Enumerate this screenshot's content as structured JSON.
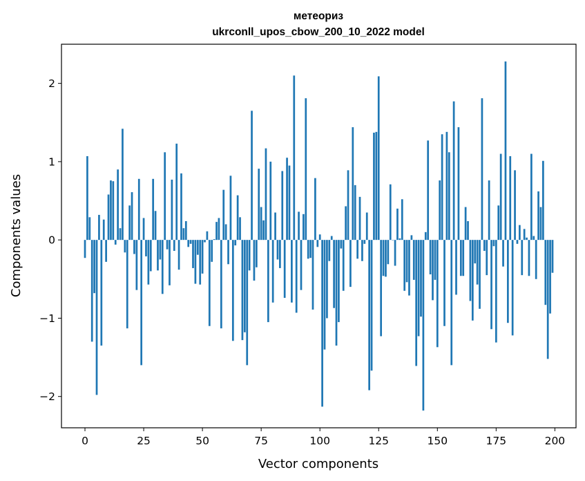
{
  "chart_data": {
    "type": "bar",
    "title_lines": [
      "метеориз",
      "ukrconll_upos_cbow_200_10_2022 model"
    ],
    "xlabel": "Vector components",
    "ylabel": "Components values",
    "xlim": [
      -10,
      209
    ],
    "ylim": [
      -2.4,
      2.5
    ],
    "xticks": [
      0,
      25,
      50,
      75,
      100,
      125,
      150,
      175,
      200
    ],
    "yticks": [
      -2,
      -1,
      0,
      1,
      2
    ],
    "ytick_labels": [
      "−2",
      "−1",
      "0",
      "1",
      "2"
    ],
    "grid": false,
    "bar_color": "#1f77b4",
    "values": [
      -0.23,
      1.07,
      0.29,
      -1.3,
      -0.68,
      -1.98,
      0.32,
      -1.35,
      0.26,
      -0.28,
      0.58,
      0.76,
      0.75,
      -0.06,
      0.9,
      0.15,
      1.42,
      -0.16,
      -1.13,
      0.44,
      0.61,
      -0.18,
      -0.64,
      0.78,
      -1.6,
      0.28,
      -0.21,
      -0.57,
      -0.4,
      0.78,
      0.37,
      -0.39,
      -0.25,
      -0.69,
      1.12,
      -0.12,
      -0.58,
      0.77,
      -0.14,
      1.23,
      -0.38,
      0.85,
      0.15,
      0.24,
      -0.09,
      -0.05,
      -0.36,
      -0.56,
      -0.19,
      -0.57,
      -0.43,
      -0.03,
      0.11,
      -1.1,
      -0.28,
      0.01,
      0.23,
      0.28,
      -1.13,
      0.64,
      0.2,
      -0.31,
      0.82,
      -1.29,
      -0.07,
      0.57,
      0.29,
      -1.28,
      -1.18,
      -1.6,
      -0.39,
      1.65,
      -0.52,
      -0.35,
      0.91,
      0.42,
      0.25,
      1.17,
      -1.05,
      1.0,
      -0.8,
      0.35,
      -0.25,
      -0.36,
      0.88,
      -0.74,
      1.05,
      0.95,
      -0.8,
      2.1,
      -0.93,
      0.36,
      -0.64,
      0.33,
      1.81,
      -0.24,
      -0.23,
      -0.89,
      0.79,
      -0.09,
      0.07,
      -2.13,
      -1.4,
      -1.0,
      -0.27,
      0.05,
      -0.87,
      -1.35,
      -1.05,
      -0.11,
      -0.65,
      0.43,
      0.89,
      -0.6,
      1.44,
      0.7,
      -0.24,
      0.55,
      -0.27,
      -0.05,
      0.35,
      -1.92,
      -1.67,
      1.37,
      1.38,
      2.09,
      -1.23,
      -0.46,
      -0.47,
      -0.31,
      0.71,
      0.0,
      -0.33,
      0.4,
      0.02,
      0.52,
      -0.65,
      -0.54,
      -0.71,
      0.06,
      -0.51,
      -1.61,
      -1.23,
      -0.98,
      -2.18,
      0.1,
      1.27,
      -0.44,
      -0.77,
      -0.51,
      -1.37,
      0.76,
      1.35,
      -1.1,
      1.38,
      1.12,
      -1.6,
      1.77,
      -0.7,
      1.44,
      -0.46,
      -0.46,
      0.42,
      0.24,
      -0.78,
      -1.03,
      -0.3,
      -0.57,
      -0.88,
      1.81,
      -0.14,
      -0.45,
      0.76,
      -1.14,
      -0.08,
      -1.31,
      0.44,
      1.1,
      -0.34,
      2.28,
      -1.06,
      1.07,
      -1.22,
      0.89,
      -0.05,
      0.19,
      -0.45,
      0.14,
      0.03,
      -0.46,
      1.1,
      0.05,
      -0.5,
      0.62,
      0.42,
      1.01,
      -0.83,
      -1.52,
      -0.94,
      -0.42
    ]
  }
}
